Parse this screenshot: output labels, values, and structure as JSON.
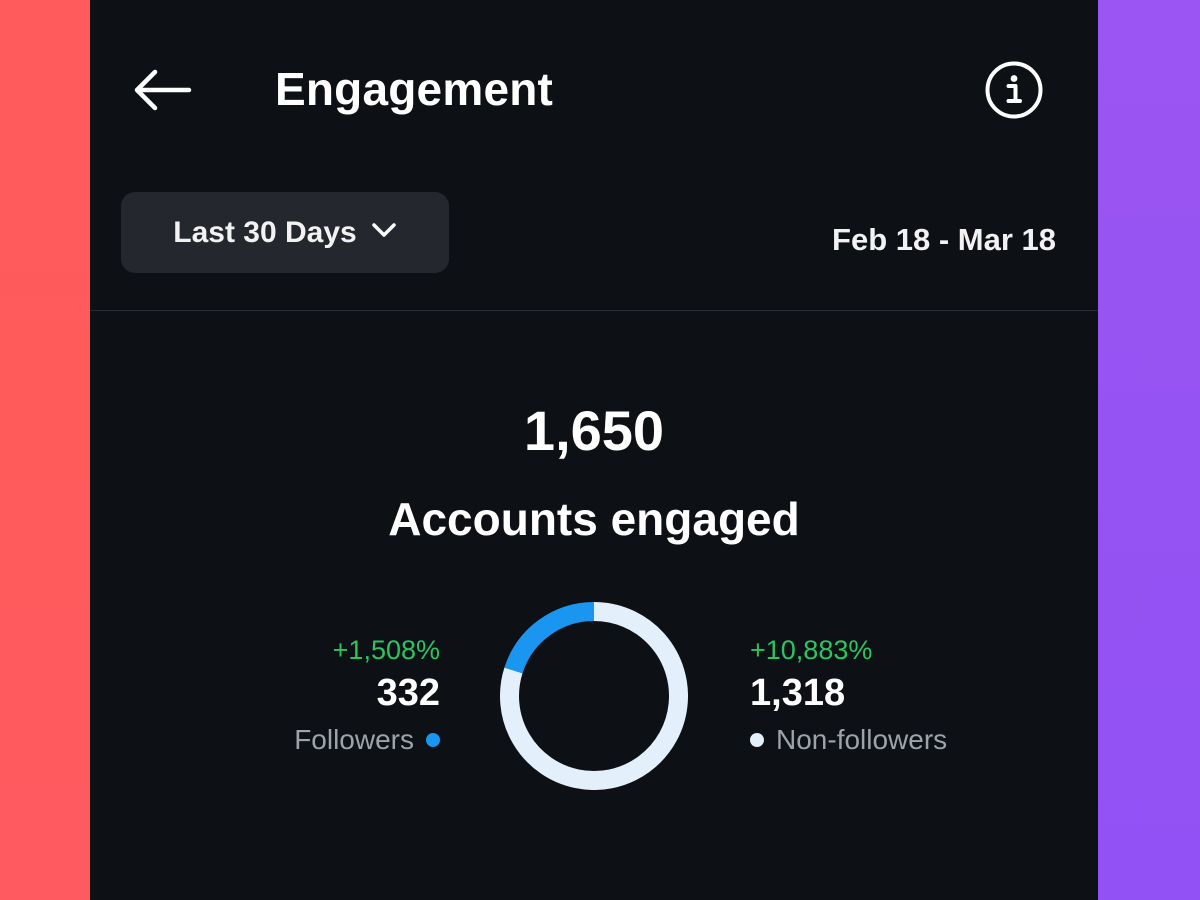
{
  "colors": {
    "background": "#0d1015",
    "button_bg": "#24272d",
    "followers": "#1a95f0",
    "non_followers": "#e3f0fb",
    "change_positive": "#2bc461",
    "muted_text": "#9ea3aa"
  },
  "header": {
    "title": "Engagement",
    "back_icon": "arrow-left-icon",
    "info_icon": "info-icon"
  },
  "filter": {
    "range_label": "Last 30 Days",
    "dropdown_icon": "chevron-down-icon",
    "date_range": "Feb 18 - Mar 18"
  },
  "summary": {
    "total": "1,650",
    "label": "Accounts engaged"
  },
  "chart_data": {
    "type": "pie",
    "categories": [
      "Followers",
      "Non-followers"
    ],
    "values": [
      332,
      1318
    ],
    "colors": [
      "#1a95f0",
      "#e3f0fb"
    ]
  },
  "followers": {
    "change": "+1,508%",
    "count": "332",
    "label": "Followers"
  },
  "non_followers": {
    "change": "+10,883%",
    "count": "1,318",
    "label": "Non-followers"
  }
}
